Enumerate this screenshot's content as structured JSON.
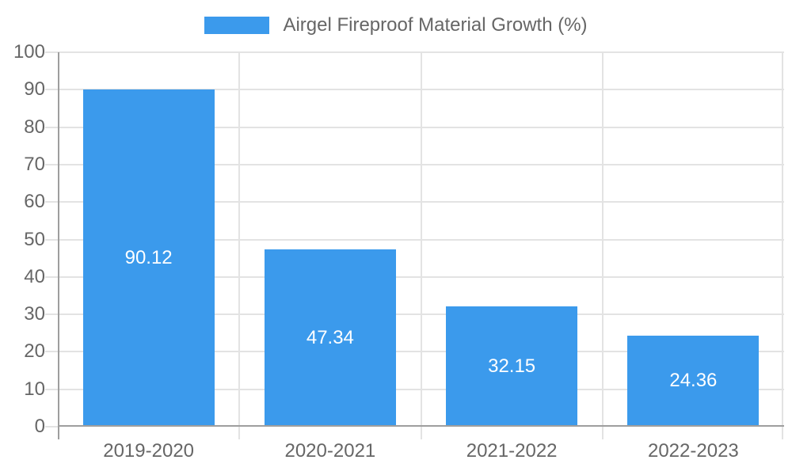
{
  "legend": {
    "label": "Airgel Fireproof Material Growth (%)"
  },
  "chart_data": {
    "type": "bar",
    "title": "Airgel Fireproof Material Growth (%)",
    "categories": [
      "2019-2020",
      "2020-2021",
      "2021-2022",
      "2022-2023"
    ],
    "values": [
      90.12,
      47.34,
      32.15,
      24.36
    ],
    "value_labels": [
      "90.12",
      "47.34",
      "32.15",
      "24.36"
    ],
    "ytick_labels": [
      "0",
      "10",
      "20",
      "30",
      "40",
      "50",
      "60",
      "70",
      "80",
      "90",
      "100"
    ],
    "yticks": [
      0,
      10,
      20,
      30,
      40,
      50,
      60,
      70,
      80,
      90,
      100
    ],
    "ylim": [
      0,
      100
    ],
    "xlabel": "",
    "ylabel": "",
    "grid": true,
    "legend_position": "top-center",
    "value_label_position": "center-of-bar",
    "colors": {
      "bar": "#3B9AEC",
      "bar_value_text": "#FFFFFF",
      "axis_line": "#9E9E9E",
      "gridline": "#E3E3E3",
      "tick_text": "#666666",
      "legend_text": "#666666",
      "background": "#FFFFFF"
    }
  }
}
